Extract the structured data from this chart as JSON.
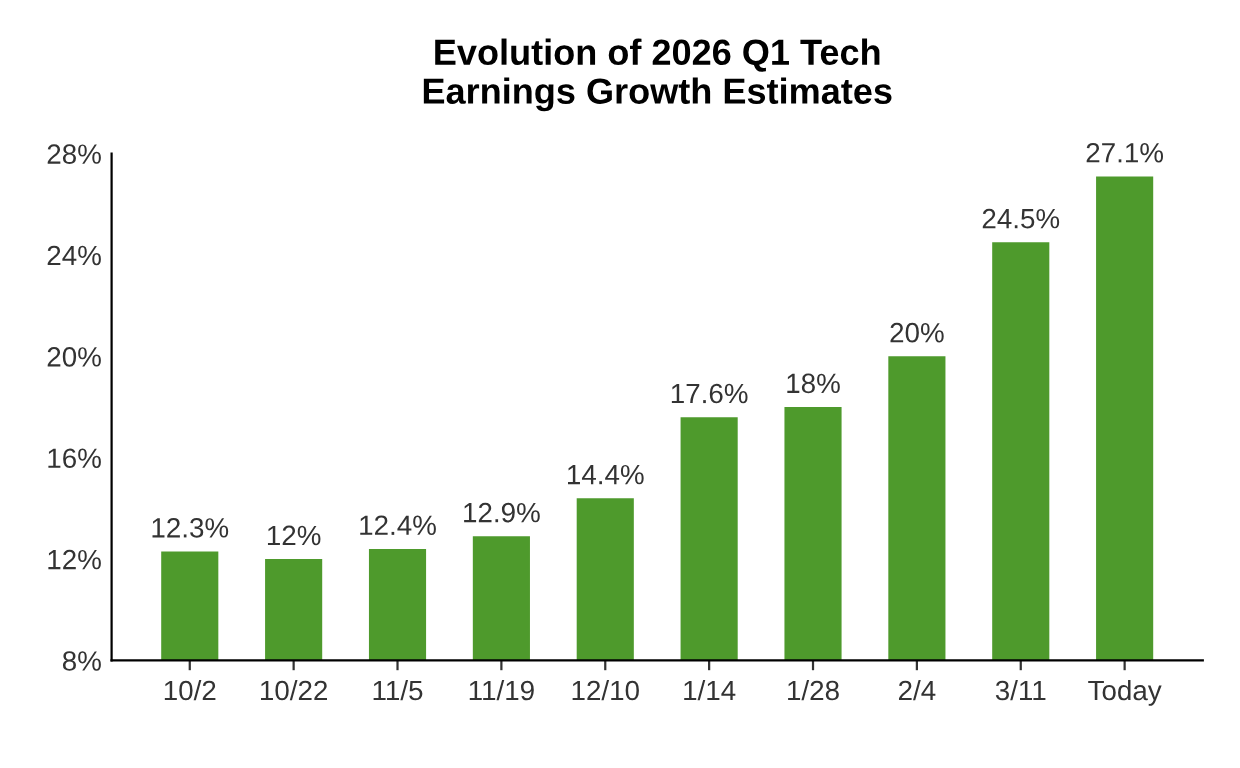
{
  "chart_data": {
    "type": "bar",
    "title": "Evolution of 2026 Q1 Tech\nEarnings Growth Estimates",
    "categories": [
      "10/2",
      "10/22",
      "11/5",
      "11/19",
      "12/10",
      "1/14",
      "1/28",
      "2/4",
      "3/11",
      "Today"
    ],
    "values": [
      12.3,
      12,
      12.4,
      12.9,
      14.4,
      17.6,
      18,
      20,
      24.5,
      27.1
    ],
    "value_labels": [
      "12.3%",
      "12%",
      "12.4%",
      "12.9%",
      "14.4%",
      "17.6%",
      "18%",
      "20%",
      "24.5%",
      "27.1%"
    ],
    "color": "#4e9a2c",
    "ylim": [
      8,
      28
    ],
    "yticks": [
      {
        "value": 8,
        "label": "8%"
      },
      {
        "value": 12,
        "label": "12%"
      },
      {
        "value": 16,
        "label": "16%"
      },
      {
        "value": 20,
        "label": "20%"
      },
      {
        "value": 24,
        "label": "24%"
      },
      {
        "value": 28,
        "label": "28%"
      }
    ],
    "grid": false
  }
}
